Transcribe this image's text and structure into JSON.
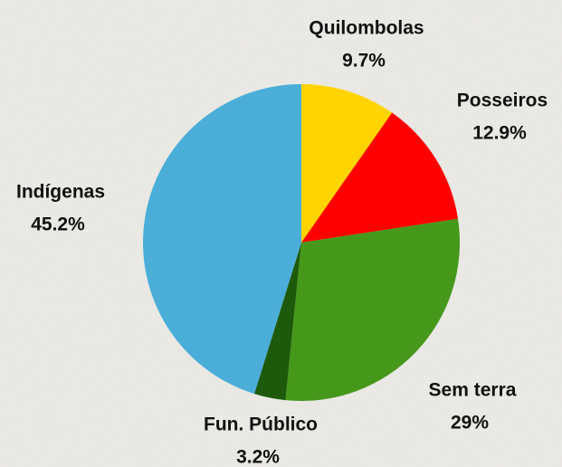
{
  "chart_data": {
    "type": "pie",
    "categories": [
      "Quilombolas",
      "Posseiros",
      "Sem terra",
      "Fun. Público",
      "Indígenas"
    ],
    "values": [
      9.7,
      12.9,
      29,
      3.2,
      45.2
    ],
    "value_labels": [
      "9.7%",
      "12.9%",
      "29%",
      "3.2%",
      "45.2%"
    ],
    "colors": [
      "#ffd400",
      "#ff0000",
      "#46981a",
      "#1d5a0b",
      "#4aaed9"
    ]
  }
}
